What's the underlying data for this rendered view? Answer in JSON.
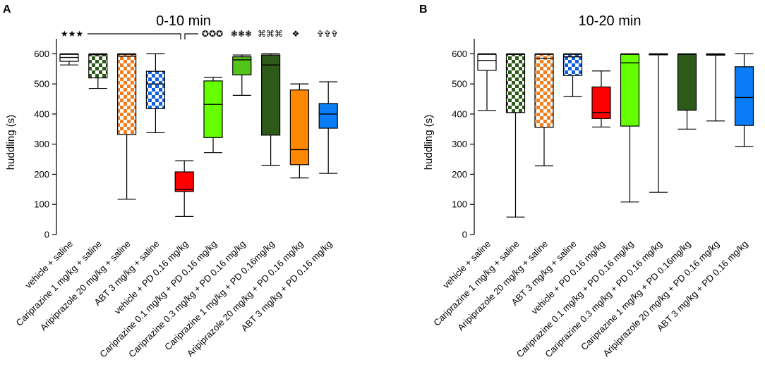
{
  "panels_letters": [
    "A",
    "B"
  ],
  "series_styles": [
    {
      "color": "#ffffff",
      "pattern": "none"
    },
    {
      "color": "#2d5a18",
      "pattern": "checker"
    },
    {
      "color": "#f37e1b",
      "pattern": "checker"
    },
    {
      "color": "#1060e0",
      "pattern": "checker"
    },
    {
      "color": "#ff0000",
      "pattern": "none"
    },
    {
      "color": "#66ff00",
      "pattern": "none"
    },
    {
      "color": "#55c41a",
      "pattern": "none"
    },
    {
      "color": "#2d5a18",
      "pattern": "none"
    },
    {
      "color": "#ff8800",
      "pattern": "none"
    },
    {
      "color": "#0a7cf5",
      "pattern": "none"
    }
  ],
  "chart_data": [
    {
      "type": "box",
      "panel": "A",
      "title": "0-10 min",
      "xlabel": "",
      "ylabel": "huddling (s)",
      "ylim": [
        0,
        650
      ],
      "yticks": [
        0,
        100,
        200,
        300,
        400,
        500,
        600
      ],
      "categories": [
        "vehicle + saline",
        "Cariprazine 1 mg/kg + saline",
        "Aripiprazole 20 mg/kg + saline",
        "ABT 3 mg/kg + saline",
        "vehicle + PD 0.16 mg/kg",
        "Cariprazine 0.1 mg/kg + PD 0.16 mg/kg",
        "Cariprazine 0.3 mg/kg + PD 0.16 mg/kg",
        "Cariprazine 1 mg/kg + PD 0.16mg/kg",
        "Aripiprazole 20 mg/kg + PD 0.16 mg/kg",
        "ABT 3 mg/kg + PD 0.16 mg/kg"
      ],
      "boxes": [
        {
          "min": 563,
          "q1": 575,
          "median": 588,
          "q3": 598,
          "max": 600
        },
        {
          "min": 485,
          "q1": 520,
          "median": 597,
          "q3": 598,
          "max": 600
        },
        {
          "min": 117,
          "q1": 332,
          "median": 592,
          "q3": 598,
          "max": 600
        },
        {
          "min": 338,
          "q1": 418,
          "median": 500,
          "q3": 542,
          "max": 600
        },
        {
          "min": 60,
          "q1": 143,
          "median": 150,
          "q3": 208,
          "max": 245
        },
        {
          "min": 272,
          "q1": 322,
          "median": 432,
          "q3": 510,
          "max": 522
        },
        {
          "min": 462,
          "q1": 530,
          "median": 580,
          "q3": 590,
          "max": 596
        },
        {
          "min": 230,
          "q1": 330,
          "median": 563,
          "q3": 596,
          "max": 600
        },
        {
          "min": 188,
          "q1": 232,
          "median": 282,
          "q3": 480,
          "max": 500
        },
        {
          "min": 203,
          "q1": 353,
          "median": 400,
          "q3": 435,
          "max": 507
        }
      ],
      "significance": {
        "left_marker": "★★★",
        "markers": [
          "✪✪✪",
          "❃❃❃",
          "⌘⌘⌘",
          "❖",
          "✞✞✞"
        ]
      }
    },
    {
      "type": "box",
      "panel": "B",
      "title": "10-20 min",
      "xlabel": "",
      "ylabel": "huddling (s)",
      "ylim": [
        0,
        650
      ],
      "yticks": [
        0,
        100,
        200,
        300,
        400,
        500,
        600
      ],
      "categories": [
        "vehicle + saline",
        "Cariprazine 1 mg/kg + saline",
        "Aripiprazole 20 mg/kg + saline",
        "ABT 3 mg/kg + saline",
        "vehicle + PD 0.16 mg/kg",
        "Cariprazine 0.1 mg/kg + PD 0.16 mg/kg",
        "Cariprazine 0.3 mg/kg + PD 0.16 mg/kg",
        "Cariprazine 1 mg/kg + PD 0.16mg/kg",
        "Aripiprazole 20 mg/kg + PD 0.16 mg/kg",
        "ABT 3 mg/kg + PD 0.16 mg/kg"
      ],
      "boxes": [
        {
          "min": 412,
          "q1": 545,
          "median": 578,
          "q3": 598,
          "max": 600
        },
        {
          "min": 58,
          "q1": 405,
          "median": 598,
          "q3": 599,
          "max": 600
        },
        {
          "min": 228,
          "q1": 356,
          "median": 585,
          "q3": 598,
          "max": 600
        },
        {
          "min": 458,
          "q1": 528,
          "median": 590,
          "q3": 598,
          "max": 600
        },
        {
          "min": 357,
          "q1": 385,
          "median": 405,
          "q3": 490,
          "max": 543
        },
        {
          "min": 108,
          "q1": 360,
          "median": 570,
          "q3": 598,
          "max": 600
        },
        {
          "min": 140,
          "q1": 598,
          "median": 599,
          "q3": 600,
          "max": 600
        },
        {
          "min": 350,
          "q1": 413,
          "median": 598,
          "q3": 599,
          "max": 600
        },
        {
          "min": 377,
          "q1": 596,
          "median": 598,
          "q3": 599,
          "max": 600
        },
        {
          "min": 292,
          "q1": 362,
          "median": 455,
          "q3": 557,
          "max": 600
        }
      ]
    }
  ]
}
